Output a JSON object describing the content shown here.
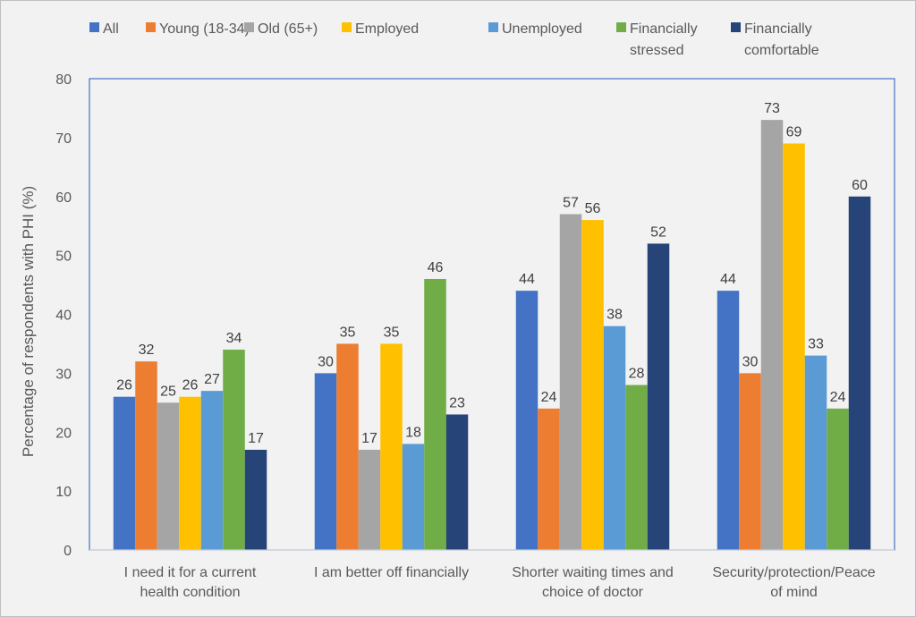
{
  "chart_data": {
    "type": "bar",
    "title": "",
    "xlabel": "",
    "ylabel": "Percentage of respondents with PHI (%)",
    "ylim": [
      0,
      80
    ],
    "yticks": [
      0,
      10,
      20,
      30,
      40,
      50,
      60,
      70,
      80
    ],
    "grid": false,
    "legend_position": "top",
    "categories": [
      [
        "I need it for a current",
        "health condition"
      ],
      [
        "I am better off financially"
      ],
      [
        "Shorter waiting times and",
        "choice of doctor"
      ],
      [
        "Security/protection/Peace",
        "of mind"
      ]
    ],
    "series": [
      {
        "name": [
          "All"
        ],
        "color": "#4472c4",
        "values": [
          26,
          30,
          44,
          44
        ]
      },
      {
        "name": [
          "Young (18-34)"
        ],
        "color": "#ed7d31",
        "values": [
          32,
          35,
          24,
          30
        ]
      },
      {
        "name": [
          "Old (65+)"
        ],
        "color": "#a5a5a5",
        "values": [
          25,
          17,
          57,
          73
        ]
      },
      {
        "name": [
          "Employed"
        ],
        "color": "#ffc000",
        "values": [
          26,
          35,
          56,
          69
        ]
      },
      {
        "name": [
          "Unemployed"
        ],
        "color": "#5b9bd5",
        "values": [
          27,
          18,
          38,
          33
        ]
      },
      {
        "name": [
          "Financially",
          "stressed"
        ],
        "color": "#70ad47",
        "values": [
          34,
          46,
          28,
          24
        ]
      },
      {
        "name": [
          "Financially",
          "comfortable"
        ],
        "color": "#264478",
        "values": [
          17,
          23,
          52,
          60
        ]
      }
    ]
  },
  "colors": {
    "plot_border": "#4472c4",
    "background": "#f2f2f2"
  }
}
